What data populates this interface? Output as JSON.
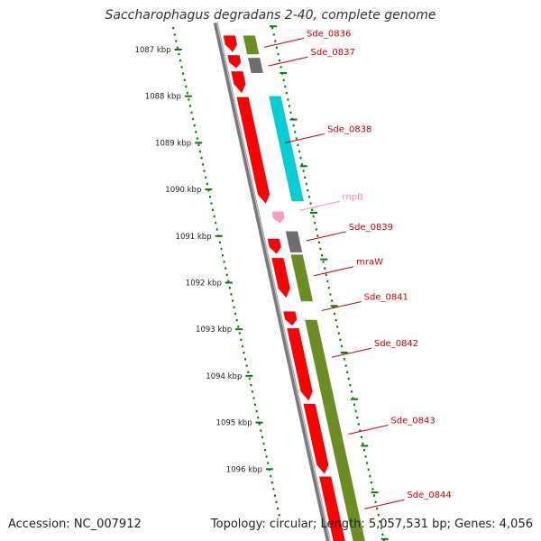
{
  "title": "Saccharophagus degradans 2-40, complete genome",
  "footer": {
    "accession": "Accession: NC_007912",
    "summary": "Topology: circular; Length: 5,057,531 bp; Genes: 4,056"
  },
  "colors": {
    "cds_red": "#ff0000",
    "olive": "#6b8e23",
    "cyan": "#00cfd6",
    "grey": "#6e6e6e",
    "pink": "#ff99cc",
    "backbone": "#7a7a7a",
    "ticks": "#008000",
    "label_red": "#cc0000",
    "label_pink": "#ff88bb"
  },
  "kbp_ticks": [
    "1087 kbp",
    "1088 kbp",
    "1089 kbp",
    "1090 kbp",
    "1091 kbp",
    "1092 kbp",
    "1093 kbp",
    "1094 kbp",
    "1095 kbp",
    "1096 kbp"
  ],
  "features": [
    {
      "track": "red",
      "start": 1086.7,
      "end": 1087.05
    },
    {
      "track": "red",
      "start": 1087.12,
      "end": 1087.4
    },
    {
      "track": "red",
      "start": 1087.47,
      "end": 1087.93
    },
    {
      "track": "red",
      "start": 1088.02,
      "end": 1090.3
    },
    {
      "track": "red",
      "start": 1091.06,
      "end": 1091.38
    },
    {
      "track": "red",
      "start": 1091.47,
      "end": 1092.32
    },
    {
      "track": "red",
      "start": 1092.62,
      "end": 1092.92
    },
    {
      "track": "red",
      "start": 1092.98,
      "end": 1094.53
    },
    {
      "track": "red",
      "start": 1094.6,
      "end": 1096.1
    },
    {
      "track": "red",
      "start": 1096.16,
      "end": 1097.85
    },
    {
      "track": "pink",
      "start": 1090.48,
      "end": 1090.72
    },
    {
      "track": "olive",
      "start": 1086.7,
      "end": 1087.1
    },
    {
      "track": "grey",
      "start": 1087.18,
      "end": 1087.5
    },
    {
      "track": "cyan",
      "start": 1088.0,
      "end": 1090.25
    },
    {
      "track": "grey",
      "start": 1090.9,
      "end": 1091.35
    },
    {
      "track": "olive",
      "start": 1091.4,
      "end": 1092.4
    },
    {
      "track": "olive",
      "start": 1092.8,
      "end": 1095.9
    },
    {
      "track": "olive",
      "start": 1095.9,
      "end": 1097.85
    }
  ],
  "gene_labels": [
    {
      "text": "Sde_0836",
      "pos": 1086.95,
      "style": "red"
    },
    {
      "text": "Sde_0837",
      "pos": 1087.35,
      "style": "red"
    },
    {
      "text": "Sde_0838",
      "pos": 1089.0,
      "style": "red"
    },
    {
      "text": "rnpB",
      "pos": 1090.45,
      "style": "pink"
    },
    {
      "text": "Sde_0839",
      "pos": 1091.1,
      "style": "red"
    },
    {
      "text": "mraW",
      "pos": 1091.85,
      "style": "red"
    },
    {
      "text": "Sde_0841",
      "pos": 1092.6,
      "style": "red"
    },
    {
      "text": "Sde_0842",
      "pos": 1093.6,
      "style": "red"
    },
    {
      "text": "Sde_0843",
      "pos": 1095.25,
      "style": "red"
    },
    {
      "text": "Sde_0844",
      "pos": 1096.85,
      "style": "red"
    }
  ]
}
